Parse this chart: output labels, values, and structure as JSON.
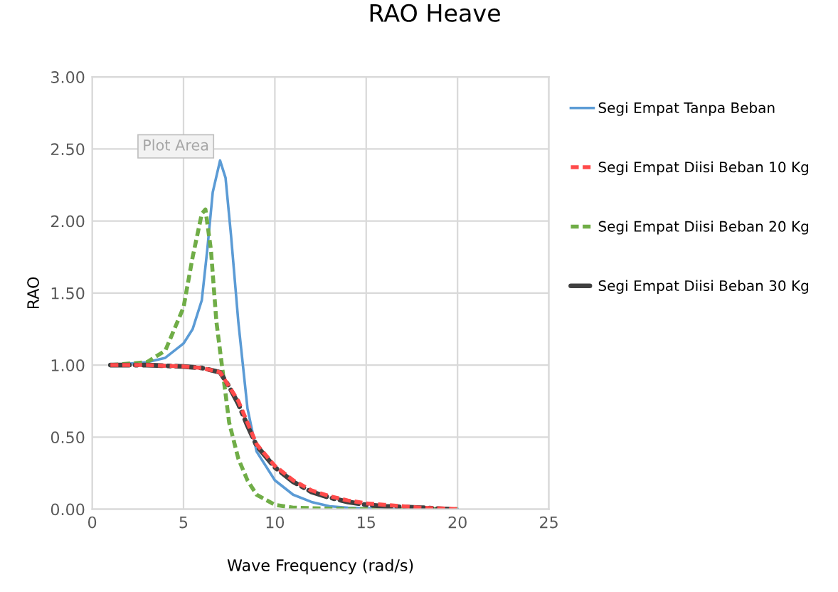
{
  "chart_data": {
    "type": "line",
    "title": "RAO Heave",
    "xlabel": "Wave Frequency (rad/s)",
    "ylabel": "RAO",
    "xlim": [
      0,
      25
    ],
    "xticks": [
      0,
      5,
      10,
      15,
      20,
      25
    ],
    "ylim": [
      0,
      3
    ],
    "yticks": [
      {
        "value": 0,
        "label": "0.00"
      },
      {
        "value": 0.5,
        "label": "0.50"
      },
      {
        "value": 1,
        "label": "1.00"
      },
      {
        "value": 1.5,
        "label": "1.50"
      },
      {
        "value": 2,
        "label": "2.00"
      },
      {
        "value": 2.5,
        "label": "2.50"
      },
      {
        "value": 3,
        "label": "3.00"
      }
    ],
    "grid": true,
    "legend": "right",
    "marker": "none",
    "annotations": [
      "Plot Area"
    ],
    "series": [
      {
        "name": "Segi Empat Tanpa Beban",
        "color": "#5b9bd5",
        "line_style": "solid",
        "x": [
          1,
          3,
          4,
          5,
          5.5,
          6,
          6.3,
          6.6,
          7,
          7.3,
          7.6,
          8,
          8.5,
          9,
          10,
          11,
          12,
          13,
          14,
          16,
          20
        ],
        "values": [
          1.0,
          1.02,
          1.05,
          1.15,
          1.25,
          1.45,
          1.8,
          2.2,
          2.42,
          2.3,
          1.9,
          1.3,
          0.7,
          0.4,
          0.2,
          0.1,
          0.05,
          0.02,
          0.01,
          0.0,
          0.0
        ]
      },
      {
        "name": "Segi Empat Diisi Beban 10 Kg",
        "color": "#ff4b4b",
        "line_style": "dashed",
        "x": [
          1,
          3,
          5,
          6,
          7,
          7.5,
          8,
          8.5,
          9,
          10,
          11,
          12,
          13,
          14,
          15,
          16,
          17,
          18,
          20
        ],
        "values": [
          1.0,
          1.0,
          0.99,
          0.98,
          0.95,
          0.85,
          0.75,
          0.6,
          0.45,
          0.3,
          0.2,
          0.13,
          0.09,
          0.06,
          0.04,
          0.03,
          0.02,
          0.01,
          0.0
        ]
      },
      {
        "name": "Segi Empat Diisi Beban 20 Kg",
        "color": "#70ad47",
        "line_style": "dashed",
        "x": [
          1,
          3,
          4,
          5,
          5.5,
          6,
          6.2,
          6.5,
          6.8,
          7.2,
          7.5,
          8,
          8.5,
          9,
          10,
          11,
          14,
          20
        ],
        "values": [
          1.0,
          1.02,
          1.1,
          1.4,
          1.75,
          2.05,
          2.08,
          1.8,
          1.3,
          0.9,
          0.6,
          0.35,
          0.2,
          0.1,
          0.03,
          0.01,
          0.0,
          0.0
        ]
      },
      {
        "name": "Segi Empat Diisi Beban 30 Kg",
        "color": "#404040",
        "line_style": "dotted",
        "x": [
          1,
          3,
          5,
          6,
          7,
          7.5,
          8,
          8.5,
          9,
          10,
          11,
          12,
          13,
          14,
          15,
          16,
          18,
          19.5
        ],
        "values": [
          1.0,
          1.0,
          0.99,
          0.98,
          0.95,
          0.85,
          0.73,
          0.58,
          0.44,
          0.29,
          0.19,
          0.12,
          0.08,
          0.05,
          0.03,
          0.02,
          0.01,
          0.0
        ]
      }
    ]
  }
}
